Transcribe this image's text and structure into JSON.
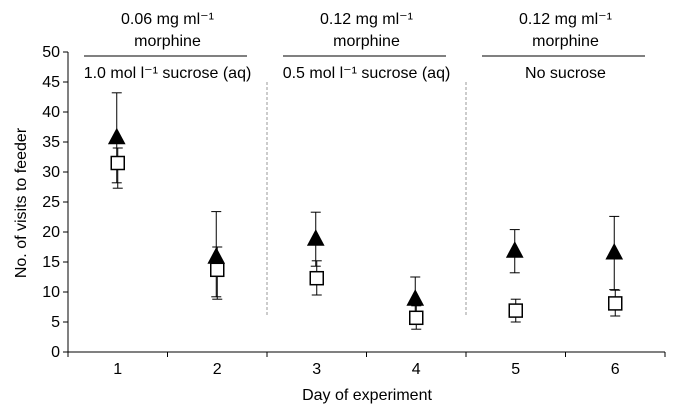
{
  "chart_data": {
    "type": "scatter",
    "xlabel": "Day of experiment",
    "ylabel": "No. of visits to feeder",
    "ylim": [
      0,
      50
    ],
    "yticks": [
      0,
      5,
      10,
      15,
      20,
      25,
      30,
      35,
      40,
      45,
      50
    ],
    "categories": [
      "1",
      "2",
      "3",
      "4",
      "5",
      "6"
    ],
    "grid": false,
    "series": [
      {
        "marker": "filled-triangle",
        "color": "#000000",
        "x": [
          1,
          2,
          3,
          4,
          5,
          6
        ],
        "values": [
          35.7,
          15.8,
          18.8,
          8.8,
          16.8,
          16.5
        ],
        "error_upper": [
          43.2,
          23.4,
          23.3,
          12.5,
          20.4,
          22.6
        ],
        "error_lower": [
          28.2,
          9.2,
          14.3,
          5.1,
          13.2,
          10.4
        ]
      },
      {
        "marker": "open-square",
        "color": "#000000",
        "x": [
          1,
          2,
          3,
          4,
          5,
          6
        ],
        "values": [
          31.5,
          13.7,
          12.3,
          5.7,
          6.9,
          8.1
        ],
        "error_upper": [
          34.0,
          17.5,
          15.2,
          7.7,
          8.8,
          10.3
        ],
        "error_lower": [
          27.3,
          8.8,
          9.5,
          3.8,
          5.0,
          6.0
        ]
      }
    ],
    "phases": [
      {
        "line1": "0.06 mg ml⁻¹",
        "line2": "morphine",
        "line3": "1.0 mol l⁻¹ sucrose (aq)",
        "days": [
          1,
          2
        ]
      },
      {
        "line1": "0.12 mg ml⁻¹",
        "line2": "morphine",
        "line3": "0.5 mol l⁻¹ sucrose (aq)",
        "days": [
          3,
          4
        ]
      },
      {
        "line1": "0.12 mg ml⁻¹",
        "line2": "morphine",
        "line3": "No sucrose",
        "days": [
          5,
          6
        ]
      }
    ]
  }
}
